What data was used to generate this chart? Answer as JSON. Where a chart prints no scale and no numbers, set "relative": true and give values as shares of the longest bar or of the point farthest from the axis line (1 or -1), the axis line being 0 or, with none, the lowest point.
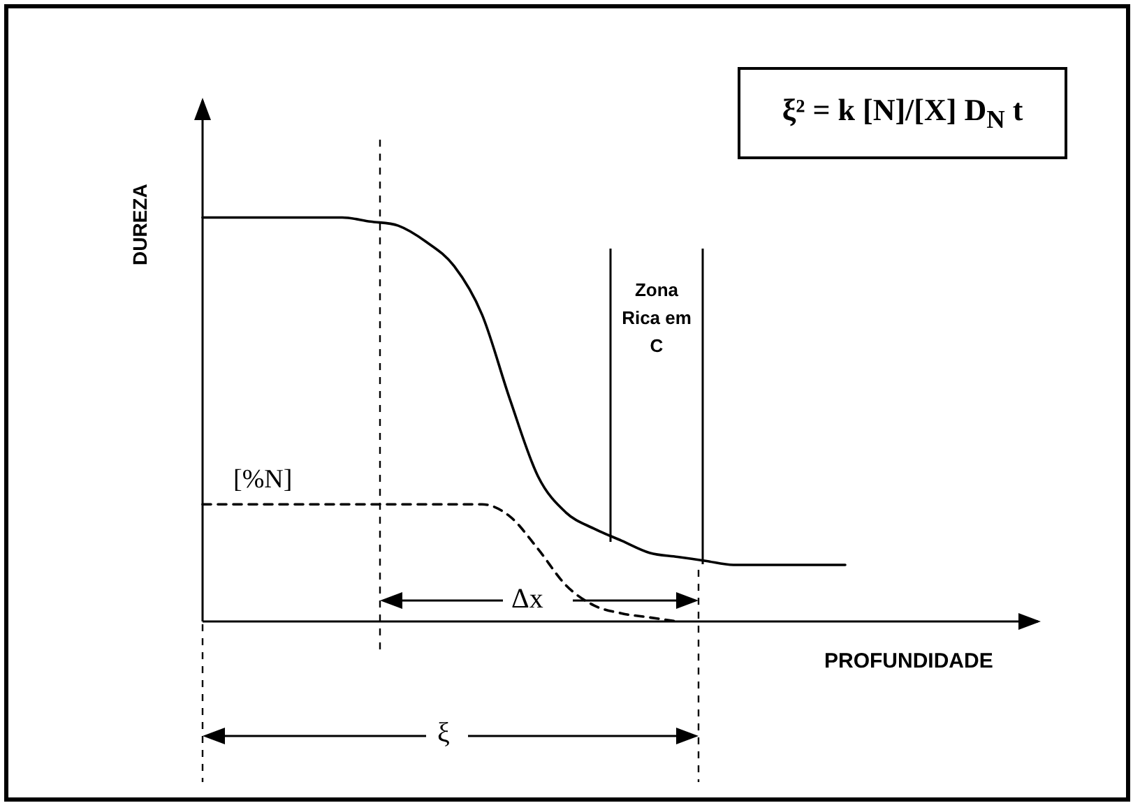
{
  "chart_data": {
    "type": "line",
    "relative": true,
    "xlabel": "PROFUNDIDADE",
    "ylabel": "DUREZA",
    "marker": "none",
    "legend": false,
    "grid": false,
    "categories": [
      null,
      null,
      null,
      null,
      null,
      null,
      null,
      null,
      null,
      null,
      null,
      null,
      null,
      null,
      null,
      null,
      null,
      null,
      null,
      null,
      null,
      null,
      null,
      null
    ],
    "series": [
      {
        "color": "#000000",
        "line_style": "solid",
        "values": [
          1,
          1,
          1,
          1,
          1,
          1,
          0.99,
          0.98,
          0.94,
          0.88,
          0.76,
          0.55,
          0.36,
          0.27,
          0.23,
          0.2,
          0.17,
          0.16,
          0.15,
          0.14,
          0.14,
          0.14,
          0.14,
          0.14
        ]
      },
      {
        "name": "[%N]",
        "color": "#000000",
        "line_style": "dashed",
        "values": [
          0.29,
          0.29,
          0.29,
          0.29,
          0.29,
          0.29,
          0.29,
          0.29,
          0.29,
          0.29,
          0.29,
          0.26,
          0.18,
          0.09,
          0.04,
          0.02,
          0.01,
          0,
          null,
          null,
          null,
          null,
          null,
          null
        ]
      }
    ],
    "annotations": [
      "ξ² = k [N]/[X] D$_{N}$ t",
      "Zona Rica em C",
      "Δx",
      "ξ"
    ]
  }
}
